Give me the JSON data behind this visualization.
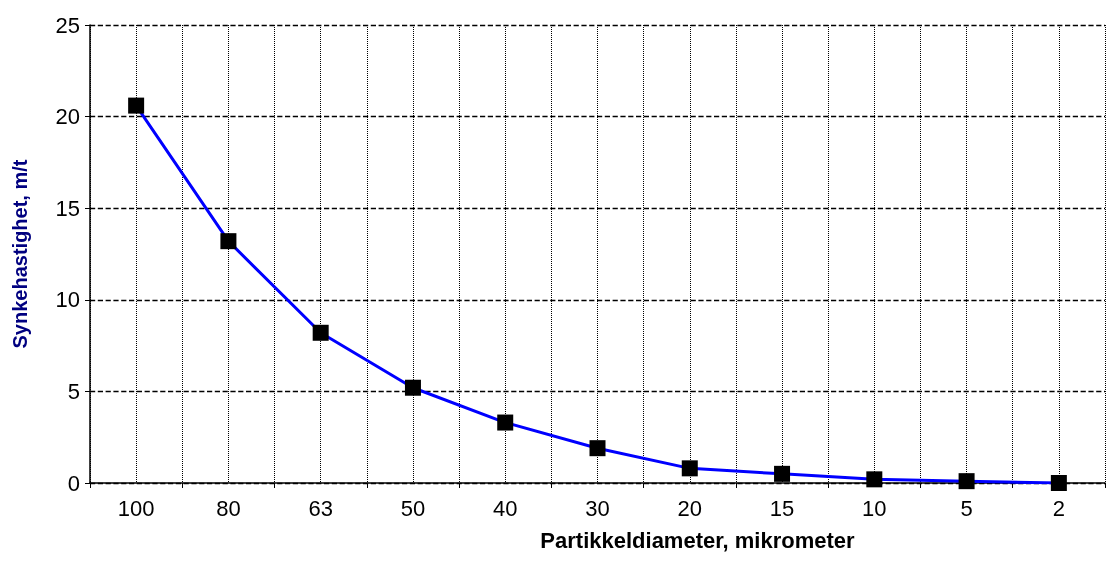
{
  "chart_data": {
    "type": "line",
    "xlabel": "Partikkeldiameter, mikrometer",
    "ylabel": "Synkehastighet, m/t",
    "categories": [
      "100",
      "80",
      "63",
      "50",
      "40",
      "30",
      "20",
      "15",
      "10",
      "5",
      "2"
    ],
    "series": [
      {
        "color": "#0000ff",
        "values": [
          20.6,
          13.2,
          8.2,
          5.2,
          3.3,
          1.9,
          0.8,
          0.5,
          0.2,
          0.1,
          0.0
        ]
      }
    ],
    "ylim": [
      0,
      25
    ],
    "yticks": [
      0,
      5,
      10,
      15,
      20,
      25
    ],
    "grid": true,
    "marker": "square",
    "line_style": "solid"
  }
}
